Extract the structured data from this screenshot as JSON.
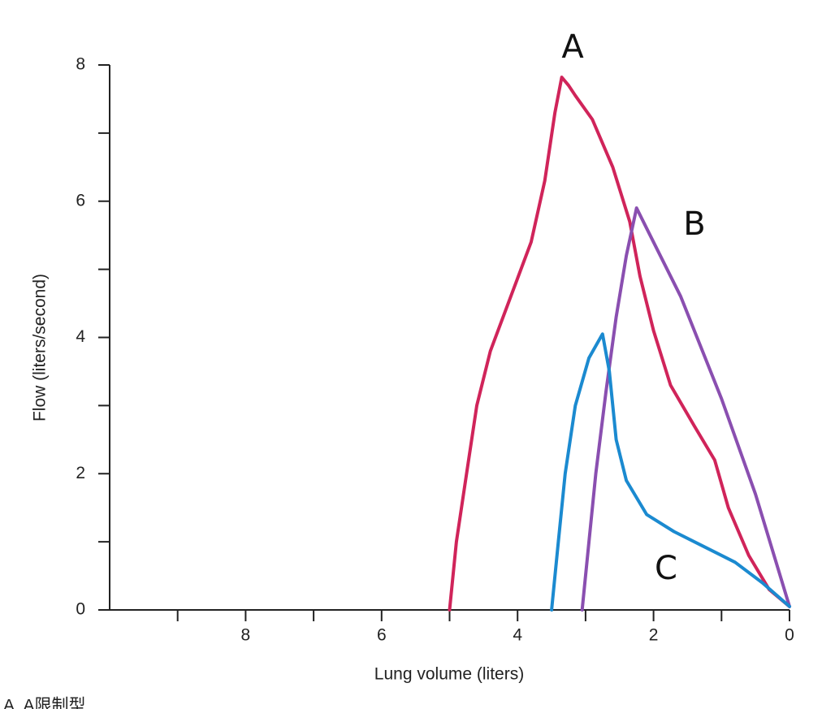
{
  "chart_data": {
    "type": "line",
    "x_label": "Lung volume (liters)",
    "y_label": "Flow (liters/second)",
    "caption": "A. A限制型",
    "xlim": [
      10,
      0
    ],
    "ylim": [
      0,
      8
    ],
    "xticks": [
      8,
      6,
      4,
      2,
      0
    ],
    "yticks": [
      0,
      2,
      4,
      6,
      8
    ],
    "xminorticks": [
      9,
      7,
      5,
      3,
      1
    ],
    "yminorticks": [
      1,
      3,
      5,
      7
    ],
    "series": [
      {
        "name": "A",
        "color": "#d0245a",
        "x": [
          5.0,
          4.9,
          4.75,
          4.6,
          4.4,
          4.1,
          3.8,
          3.6,
          3.45,
          3.35,
          3.25,
          3.15,
          2.9,
          2.6,
          2.35,
          2.2,
          2.0,
          1.75,
          1.4,
          1.1,
          0.9,
          0.6,
          0.3,
          0
        ],
        "values": [
          0,
          1,
          2,
          3,
          3.8,
          4.6,
          5.4,
          6.3,
          7.3,
          7.82,
          7.7,
          7.55,
          7.2,
          6.5,
          5.7,
          4.9,
          4.1,
          3.3,
          2.7,
          2.2,
          1.5,
          0.8,
          0.3,
          0.05
        ]
      },
      {
        "name": "B",
        "color": "#8a4fb0",
        "x": [
          3.05,
          2.95,
          2.85,
          2.7,
          2.55,
          2.4,
          2.25,
          2.1,
          1.6,
          1.0,
          0.5,
          0
        ],
        "values": [
          0,
          1,
          2,
          3.2,
          4.3,
          5.2,
          5.9,
          5.6,
          4.6,
          3.1,
          1.7,
          0.05
        ]
      },
      {
        "name": "C",
        "color": "#1b8ad0",
        "x": [
          3.5,
          3.4,
          3.3,
          3.15,
          2.95,
          2.75,
          2.65,
          2.55,
          2.4,
          2.1,
          1.7,
          1.3,
          0.8,
          0.4,
          0
        ],
        "values": [
          0,
          1,
          2,
          3,
          3.7,
          4.05,
          3.5,
          2.5,
          1.9,
          1.4,
          1.15,
          0.95,
          0.7,
          0.4,
          0.05
        ]
      }
    ]
  }
}
